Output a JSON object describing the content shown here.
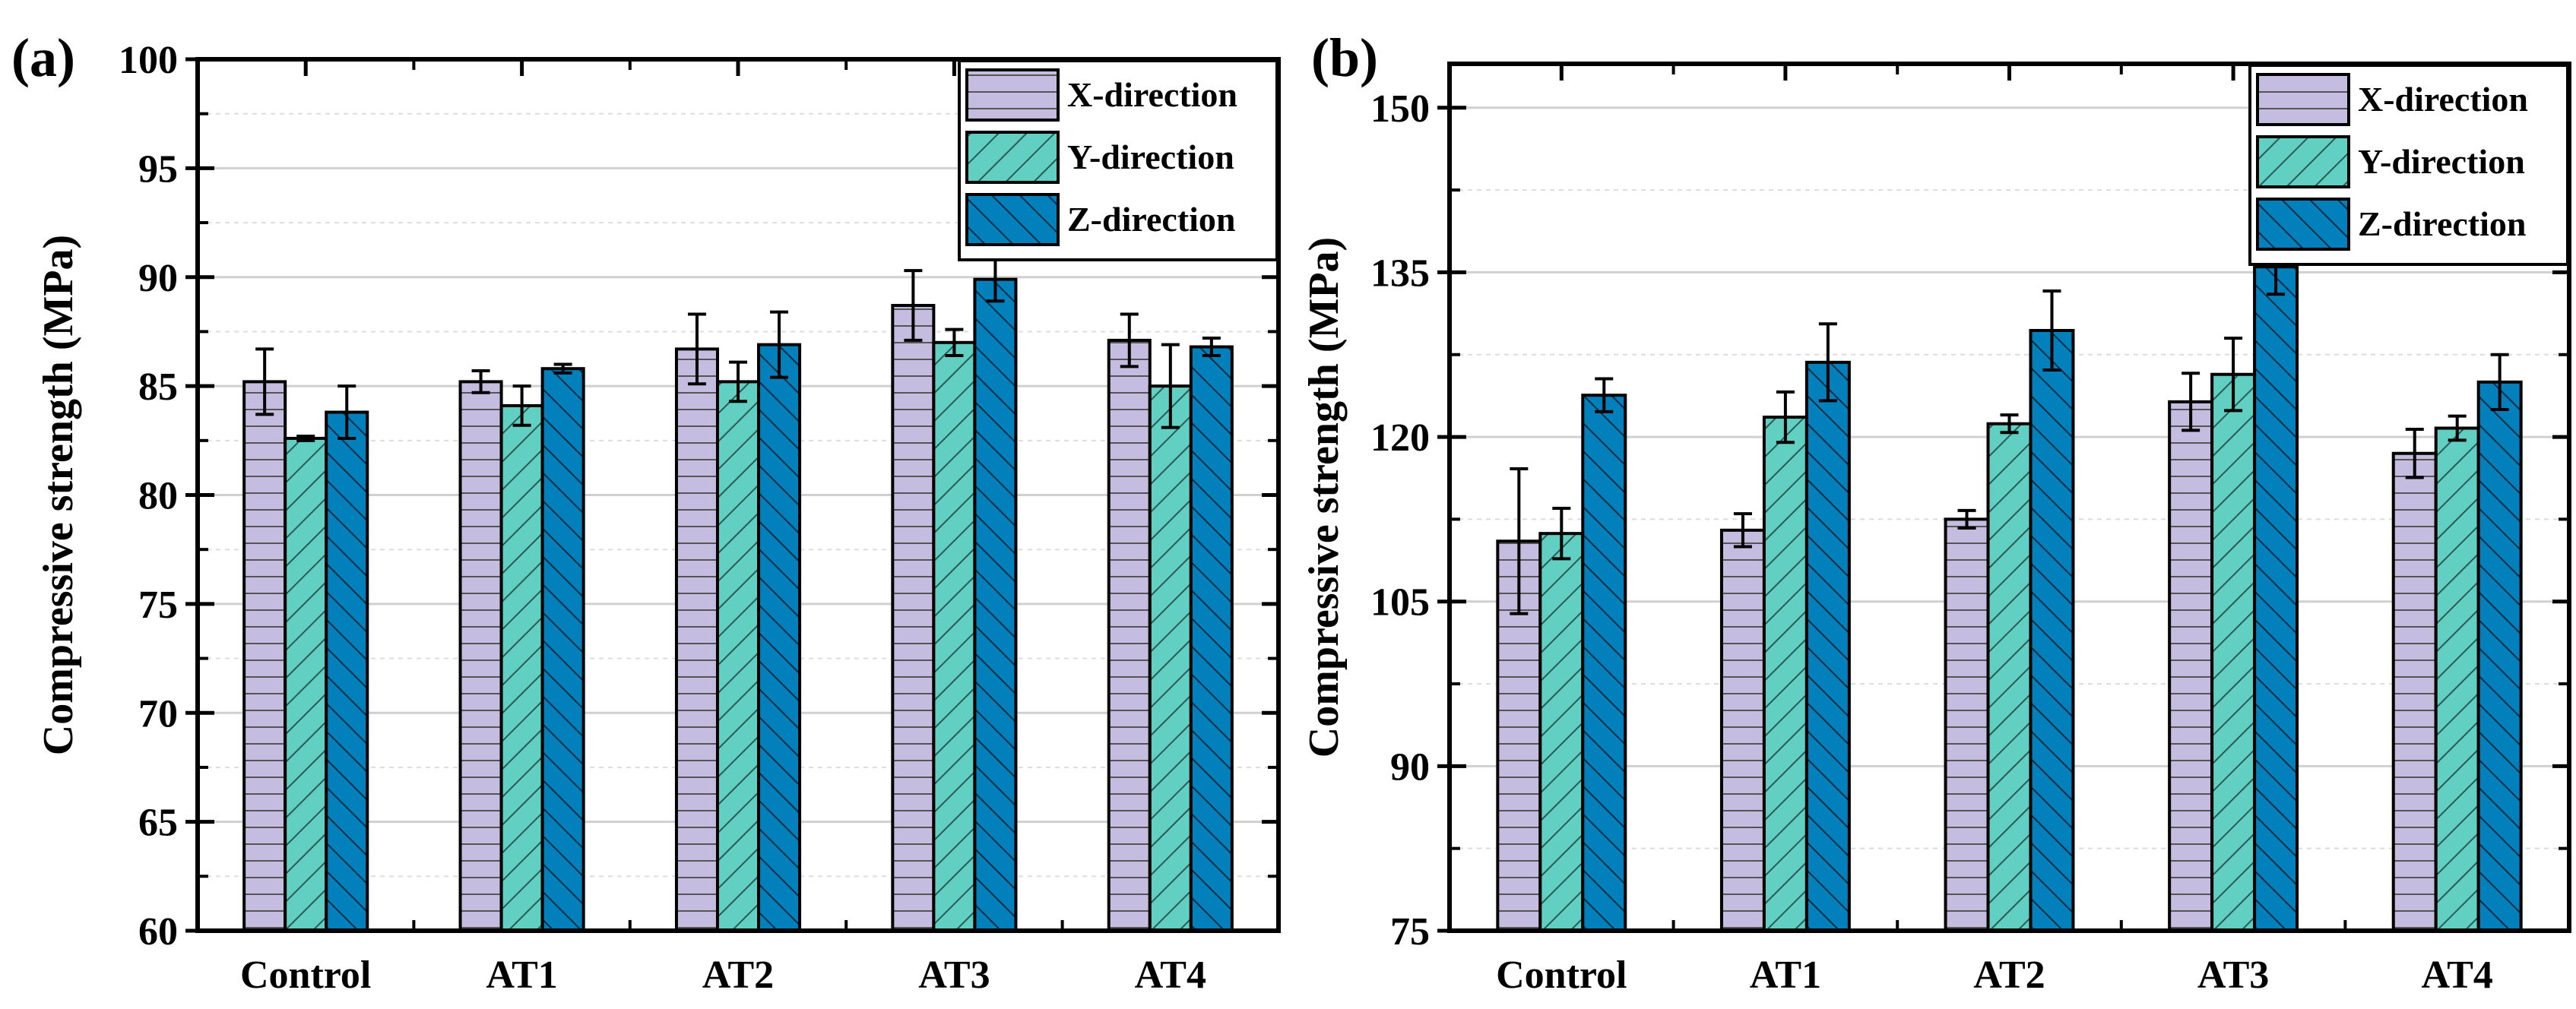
{
  "colors": {
    "x": "#c5bde0",
    "y": "#62cfc3",
    "z": "#0180bb",
    "grid": "#d0d0d0"
  },
  "chart_data": [
    {
      "type": "bar",
      "panel_label": "(a)",
      "ylabel": "Compressive strength (MPa)",
      "xlabel": "",
      "categories": [
        "Control",
        "AT1",
        "AT2",
        "AT3",
        "AT4"
      ],
      "ylim": [
        60,
        100
      ],
      "yticks": [
        60,
        65,
        70,
        75,
        80,
        85,
        90,
        95,
        100
      ],
      "ytick_labels": [
        "60",
        "65",
        "70",
        "75",
        "80",
        "85",
        "90",
        "95",
        "100"
      ],
      "grid": true,
      "legend_position": "top-right",
      "series": [
        {
          "name": "X-direction",
          "values": [
            85.2,
            85.2,
            86.7,
            88.7,
            87.1
          ],
          "errors": [
            1.5,
            0.5,
            1.6,
            1.6,
            1.2
          ]
        },
        {
          "name": "Y-direction",
          "values": [
            82.6,
            84.1,
            85.2,
            87.0,
            85.0
          ],
          "errors": [
            0.1,
            0.9,
            0.9,
            0.6,
            1.9
          ]
        },
        {
          "name": "Z-direction",
          "values": [
            83.8,
            85.8,
            86.9,
            89.9,
            86.8
          ],
          "errors": [
            1.2,
            0.2,
            1.5,
            1.0,
            0.4
          ]
        }
      ]
    },
    {
      "type": "bar",
      "panel_label": "(b)",
      "ylabel": "Compressive strength (MPa)",
      "xlabel": "",
      "categories": [
        "Control",
        "AT1",
        "AT2",
        "AT3",
        "AT4"
      ],
      "ylim": [
        75,
        154
      ],
      "yticks": [
        75,
        90,
        105,
        120,
        135,
        150
      ],
      "ytick_labels": [
        "75",
        "90",
        "105",
        "120",
        "135",
        "150"
      ],
      "grid": true,
      "legend_position": "top-right",
      "series": [
        {
          "name": "X-direction",
          "values": [
            110.5,
            111.5,
            112.5,
            123.2,
            118.5
          ],
          "errors": [
            6.6,
            1.5,
            0.8,
            2.6,
            2.2
          ]
        },
        {
          "name": "Y-direction",
          "values": [
            111.2,
            121.8,
            121.2,
            125.7,
            120.8
          ],
          "errors": [
            2.3,
            2.3,
            0.8,
            3.3,
            1.1
          ]
        },
        {
          "name": "Z-direction",
          "values": [
            123.8,
            126.8,
            129.7,
            135.5,
            125.0
          ],
          "errors": [
            1.5,
            3.5,
            3.6,
            2.5,
            2.5
          ]
        }
      ]
    }
  ]
}
